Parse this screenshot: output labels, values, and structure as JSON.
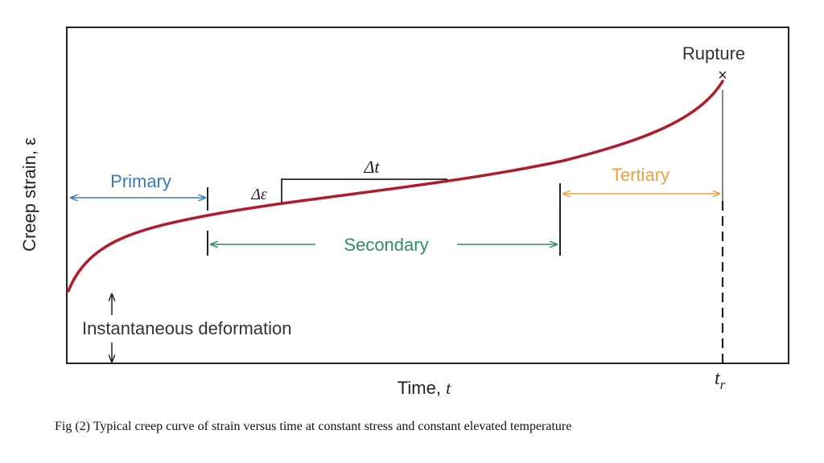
{
  "diagram": {
    "y_axis_label": "Creep strain, ε",
    "x_axis_label": "Time, ",
    "x_axis_var": "t",
    "rupture_label": "Rupture",
    "rupture_time_label": "t",
    "rupture_time_sub": "r",
    "primary_label": "Primary",
    "secondary_label": "Secondary",
    "tertiary_label": "Tertiary",
    "delta_t_label": "Δt",
    "delta_eps_label": "Δε",
    "instantaneous_label": "Instantaneous deformation",
    "colors": {
      "curve": "#b31b2a",
      "primary": "#3a78c2",
      "secondary": "#2e8b6e",
      "tertiary": "#f0a040",
      "frame": "#222222"
    }
  },
  "caption": "Fig (2) Typical creep curve of strain versus time at constant stress and constant elevated temperature"
}
